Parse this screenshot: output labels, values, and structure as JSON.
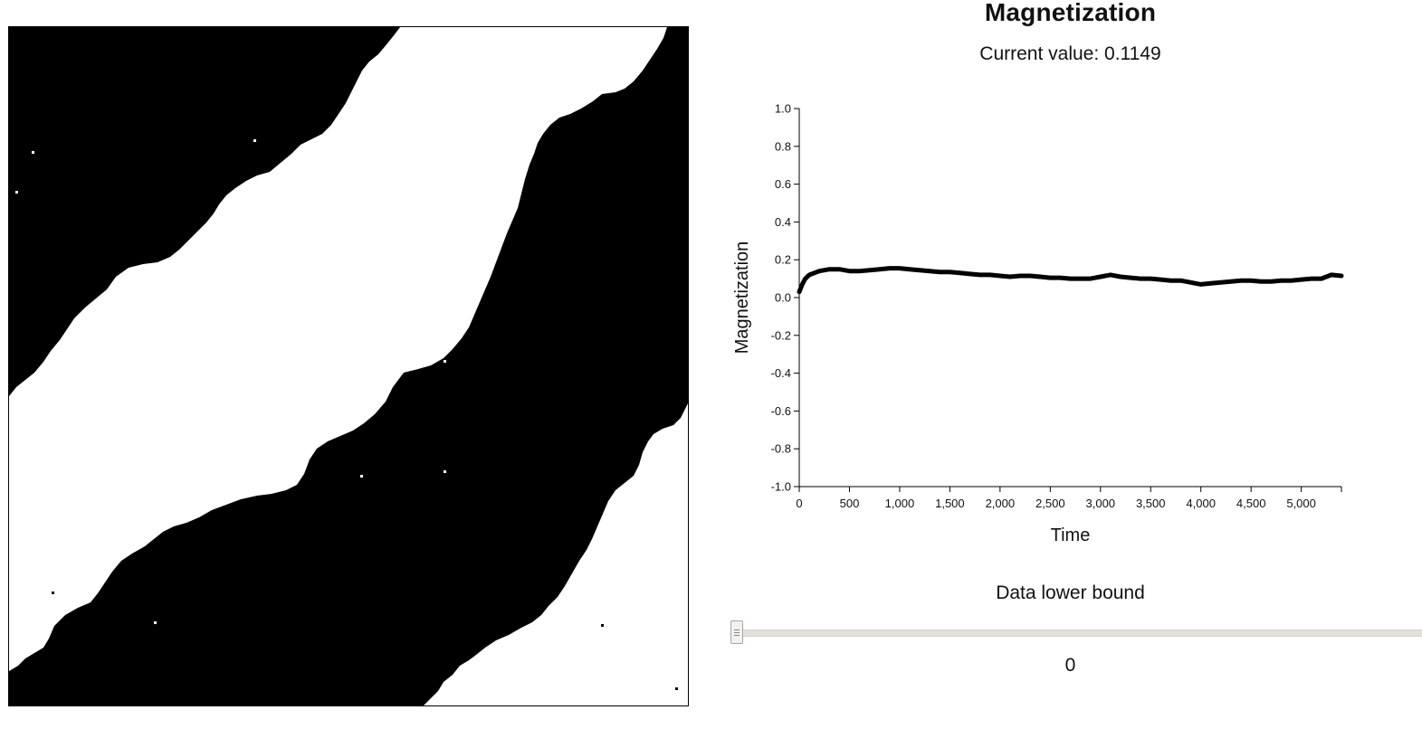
{
  "lattice": {
    "label": "ising-lattice",
    "spin_up_color": "#ffffff",
    "spin_down_color": "#000000"
  },
  "panel": {
    "title": "Magnetization",
    "current_value_text": "Current value: 0.1149"
  },
  "slider": {
    "label": "Data lower bound",
    "value": "0",
    "position_fraction": 0
  },
  "chart_data": {
    "type": "line",
    "xlabel": "Time",
    "ylabel": "Magnetization",
    "xlim": [
      0,
      5400
    ],
    "ylim": [
      -1.0,
      1.0
    ],
    "x_ticks": [
      0,
      500,
      1000,
      1500,
      2000,
      2500,
      3000,
      3500,
      4000,
      4500,
      5000
    ],
    "x_tick_labels": [
      "0",
      "500",
      "1,000",
      "1,500",
      "2,000",
      "2,500",
      "3,000",
      "3,500",
      "4,000",
      "4,500",
      "5,000"
    ],
    "y_ticks": [
      1.0,
      0.8,
      0.6,
      0.4,
      0.2,
      0.0,
      -0.2,
      -0.4,
      -0.6,
      -0.8,
      -1.0
    ],
    "y_tick_labels": [
      "1.0",
      "0.8",
      "0.6",
      "0.4",
      "0.2",
      "0.0",
      "-0.2",
      "-0.4",
      "-0.6",
      "-0.8",
      "-1.0"
    ],
    "grid": false,
    "line_color": "#000000",
    "series": [
      {
        "x": [
          0,
          30,
          60,
          100,
          150,
          200,
          300,
          400,
          500,
          600,
          700,
          800,
          900,
          1000,
          1100,
          1200,
          1300,
          1400,
          1500,
          1600,
          1700,
          1800,
          1900,
          2000,
          2100,
          2200,
          2300,
          2400,
          2500,
          2600,
          2700,
          2800,
          2900,
          3000,
          3100,
          3200,
          3300,
          3400,
          3500,
          3600,
          3700,
          3800,
          3900,
          4000,
          4100,
          4200,
          4300,
          4400,
          4500,
          4600,
          4700,
          4800,
          4900,
          5000,
          5100,
          5200,
          5300,
          5400
        ],
        "y": [
          0.03,
          0.07,
          0.1,
          0.12,
          0.13,
          0.14,
          0.15,
          0.15,
          0.14,
          0.14,
          0.145,
          0.15,
          0.155,
          0.155,
          0.15,
          0.145,
          0.14,
          0.135,
          0.135,
          0.13,
          0.125,
          0.12,
          0.12,
          0.115,
          0.11,
          0.115,
          0.115,
          0.11,
          0.105,
          0.105,
          0.1,
          0.1,
          0.1,
          0.11,
          0.12,
          0.11,
          0.105,
          0.1,
          0.1,
          0.095,
          0.09,
          0.09,
          0.08,
          0.07,
          0.075,
          0.08,
          0.085,
          0.09,
          0.09,
          0.085,
          0.085,
          0.09,
          0.09,
          0.095,
          0.1,
          0.1,
          0.12,
          0.115
        ]
      }
    ]
  }
}
